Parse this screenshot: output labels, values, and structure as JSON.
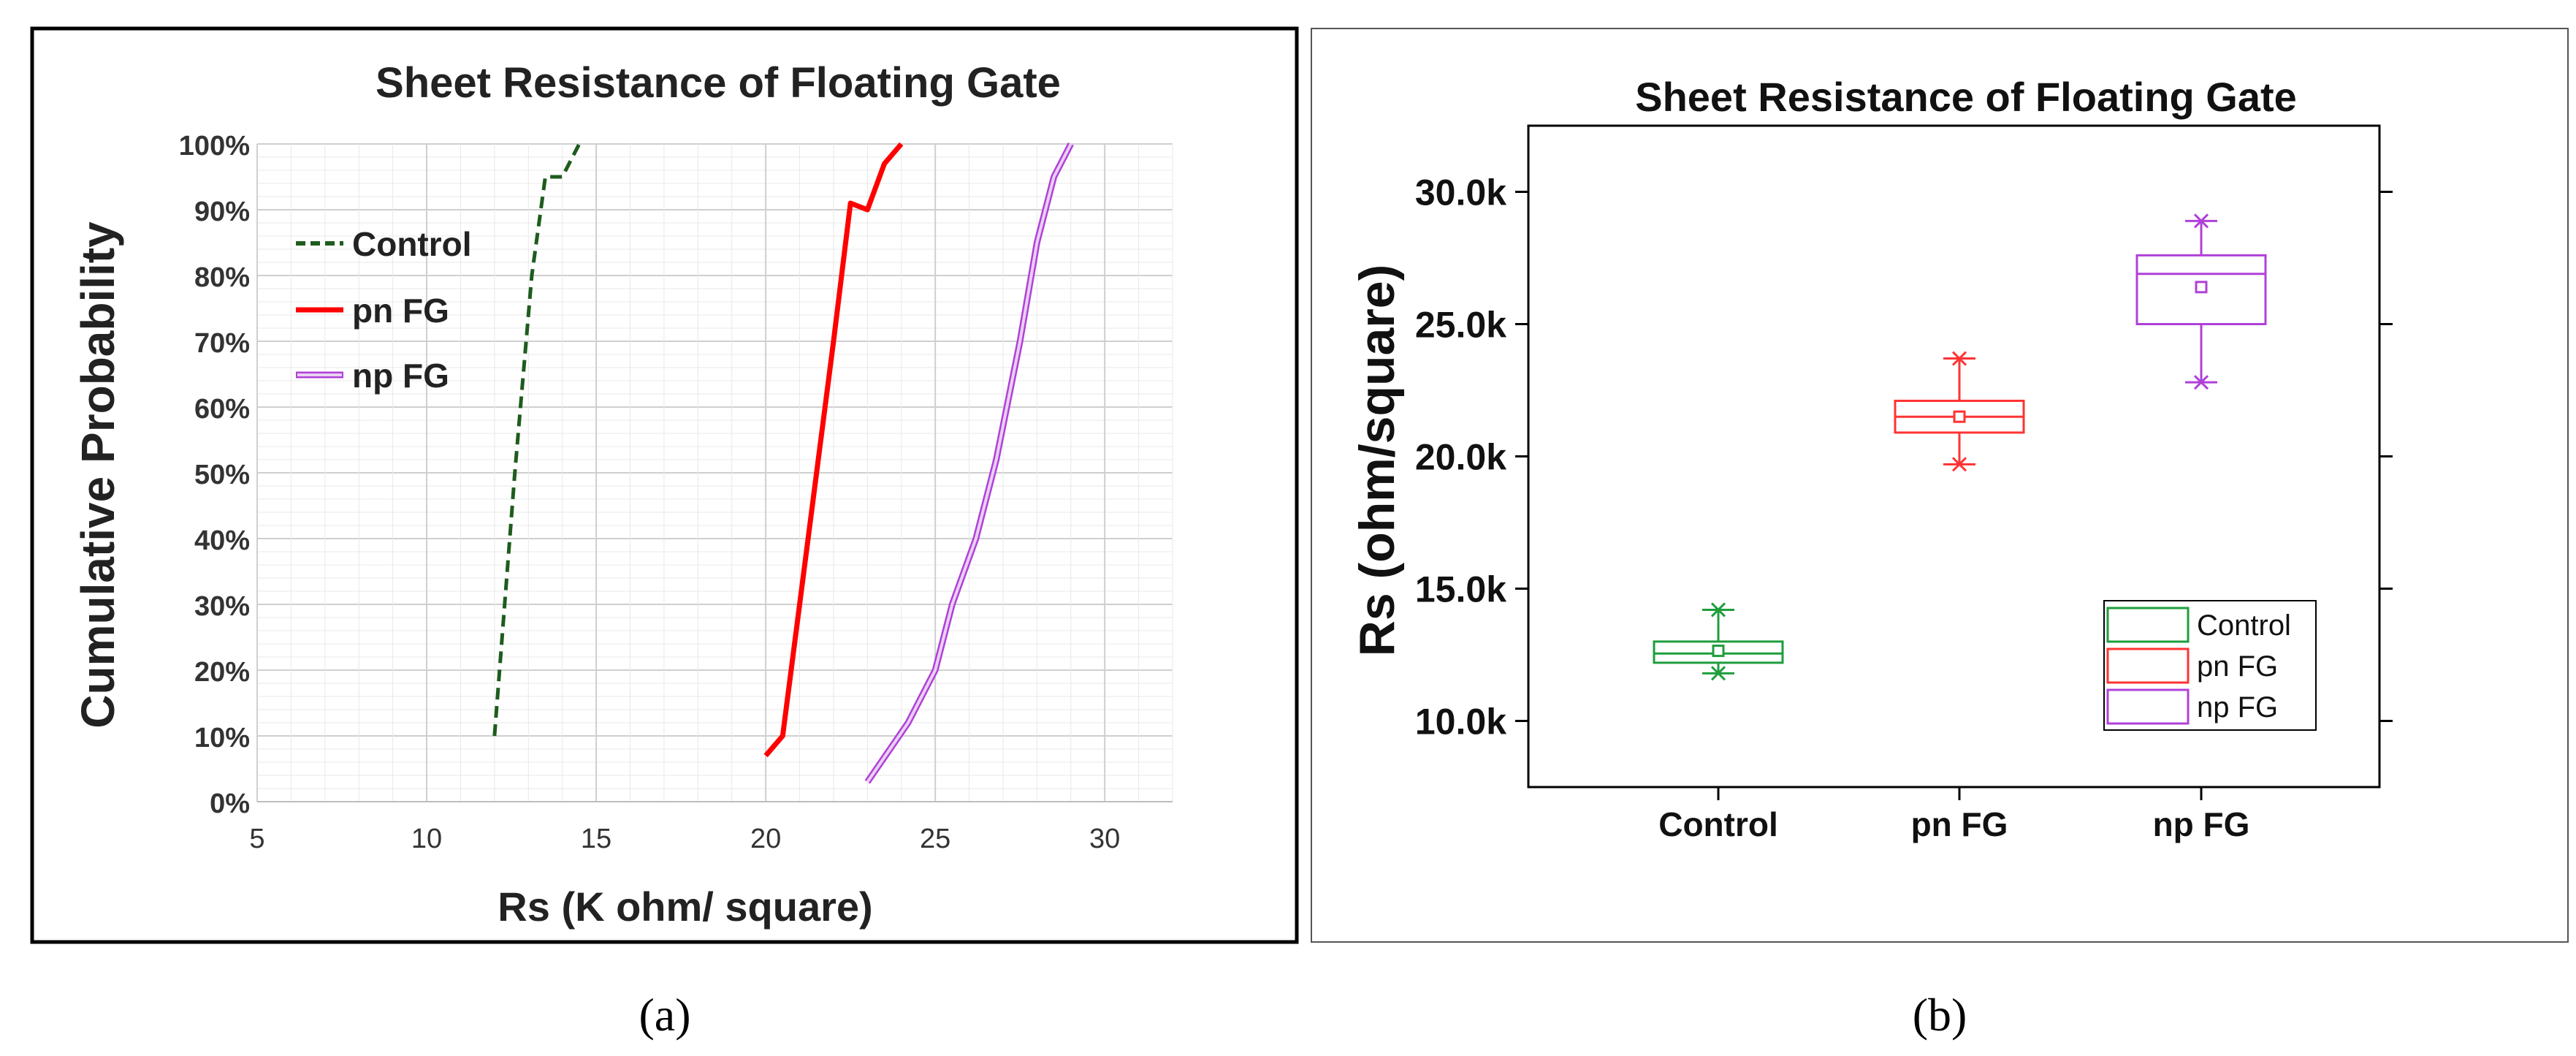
{
  "chart_data": [
    {
      "panel": "a",
      "type": "line",
      "title": "Sheet Resistance of Floating Gate",
      "xlabel": "Rs (K ohm/ square)",
      "ylabel": "Cumulative Probability",
      "xlim": [
        5,
        32
      ],
      "ylim": [
        0,
        100
      ],
      "xticks": [
        "5",
        "10",
        "15",
        "20",
        "25",
        "30"
      ],
      "yticks": [
        "0%",
        "10%",
        "20%",
        "30%",
        "40%",
        "50%",
        "60%",
        "70%",
        "80%",
        "90%",
        "100%"
      ],
      "legend_position": "upper-left",
      "grid": true,
      "series": [
        {
          "name": "Control",
          "color": "#1e5c1e",
          "style": "dashed",
          "x": [
            12.0,
            12.6,
            13.1,
            13.5,
            14.0,
            14.5
          ],
          "y": [
            10,
            50,
            80,
            95,
            95,
            100
          ]
        },
        {
          "name": "pn FG",
          "color": "#ff0000",
          "style": "solid",
          "x": [
            20.0,
            20.5,
            21.0,
            21.5,
            22.0,
            22.5,
            23.0,
            23.5,
            24.0
          ],
          "y": [
            7,
            10,
            30,
            50,
            70,
            91,
            90,
            97,
            100
          ]
        },
        {
          "name": "np FG",
          "color": "#b040d8",
          "style": "double",
          "x": [
            23.0,
            24.2,
            25.0,
            25.5,
            26.2,
            26.8,
            27.5,
            28.0,
            28.5,
            29.0
          ],
          "y": [
            3,
            12,
            20,
            30,
            40,
            52,
            70,
            85,
            95,
            100
          ]
        }
      ]
    },
    {
      "panel": "b",
      "type": "box",
      "title": "Sheet Resistance of Floating Gate",
      "xlabel": "",
      "ylabel": "Rs (ohm/square)",
      "ylim": [
        7500,
        32500
      ],
      "yticks": [
        "10.0k",
        "15.0k",
        "20.0k",
        "25.0k",
        "30.0k"
      ],
      "categories": [
        "Control",
        "pn FG",
        "np FG"
      ],
      "legend_position": "lower-right",
      "series": [
        {
          "name": "Control",
          "color": "#1e9e3c",
          "whisker_low": 11800,
          "q1": 12200,
          "median": 12550,
          "q3": 13000,
          "whisker_high": 14200,
          "mean": 12650
        },
        {
          "name": "pn FG",
          "color": "#ff3333",
          "whisker_low": 19700,
          "q1": 20900,
          "median": 21500,
          "q3": 22100,
          "whisker_high": 23700,
          "mean": 21500
        },
        {
          "name": "np FG",
          "color": "#b040d8",
          "whisker_low": 22800,
          "q1": 25000,
          "median": 26900,
          "q3": 27600,
          "whisker_high": 28900,
          "mean": 26400
        }
      ]
    }
  ],
  "captions": {
    "a": "(a)",
    "b": "(b)"
  }
}
